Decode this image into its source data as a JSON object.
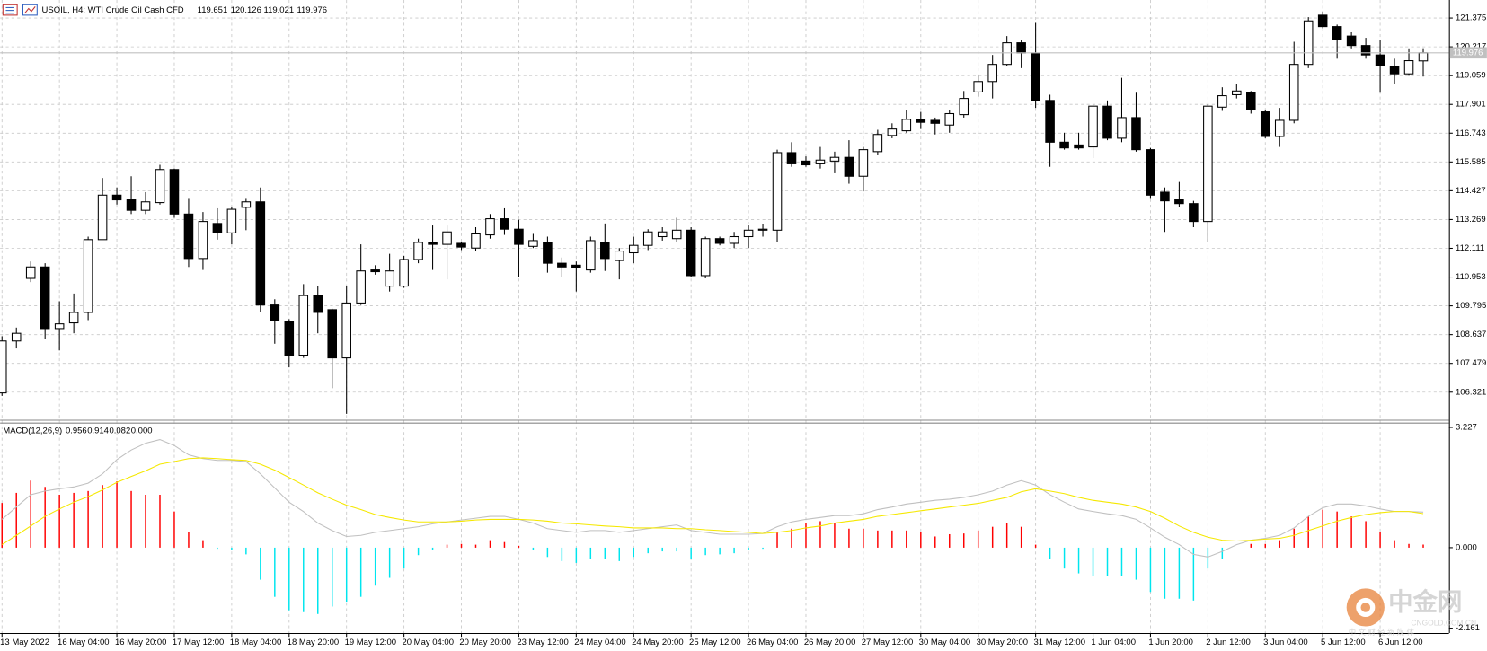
{
  "chart_data": [
    {
      "type": "candlestick",
      "title": "USOIL, H4: WTI Crude Oil Cash CFD",
      "categories": [
        "13 May 2022",
        null,
        null,
        null,
        "16 May 04:00",
        null,
        null,
        null,
        "16 May 20:00",
        null,
        null,
        null,
        "17 May 12:00",
        null,
        null,
        null,
        "18 May 04:00",
        null,
        null,
        null,
        "18 May 20:00",
        null,
        null,
        null,
        "19 May 12:00",
        null,
        null,
        null,
        "20 May 04:00",
        null,
        null,
        null,
        "20 May 20:00",
        null,
        null,
        null,
        "23 May 12:00",
        null,
        null,
        null,
        "24 May 04:00",
        null,
        null,
        null,
        "24 May 20:00",
        null,
        null,
        null,
        "25 May 12:00",
        null,
        null,
        null,
        "26 May 04:00",
        null,
        null,
        null,
        "26 May 20:00",
        null,
        null,
        null,
        "27 May 12:00",
        null,
        null,
        null,
        "30 May 04:00",
        null,
        null,
        null,
        "30 May 20:00",
        null,
        null,
        null,
        "31 May 12:00",
        null,
        null,
        null,
        "1 Jun 04:00",
        null,
        null,
        null,
        "1 Jun 20:00",
        null,
        null,
        null,
        "2 Jun 12:00",
        null,
        null,
        null,
        "3 Jun 04:00",
        null,
        null,
        null,
        "5 Jun 12:00",
        null,
        null,
        null,
        "6 Jun 12:00",
        null,
        null,
        null
      ],
      "open": [
        106.29,
        108.38,
        110.9,
        111.36,
        108.88,
        109.11,
        109.53,
        112.46,
        114.25,
        114.06,
        113.64,
        113.95,
        115.28,
        113.49,
        111.7,
        113.11,
        112.73,
        113.76,
        113.98,
        109.83,
        109.18,
        107.81,
        110.21,
        109.64,
        107.7,
        109.91,
        111.24,
        110.59,
        110.59,
        111.66,
        112.35,
        112.27,
        112.31,
        112.12,
        112.65,
        113.3,
        112.88,
        112.19,
        112.35,
        111.51,
        111.43,
        111.24,
        112.35,
        111.62,
        111.93,
        112.23,
        112.58,
        112.5,
        112.84,
        111.01,
        112.5,
        112.31,
        112.58,
        112.84,
        112.84,
        115.96,
        115.62,
        115.51,
        115.62,
        115.77,
        115.01,
        116.0,
        116.65,
        116.84,
        117.3,
        117.26,
        117.07,
        117.49,
        118.4,
        118.82,
        119.51,
        120.38,
        119.97,
        118.06,
        116.38,
        116.27,
        116.19,
        117.83,
        116.54,
        117.37,
        116.08,
        114.37,
        114.06,
        113.91,
        113.19,
        117.79,
        118.29,
        118.37,
        117.6,
        116.61,
        117.26,
        119.51,
        121.49,
        121.03,
        120.65,
        120.27,
        119.89,
        119.43,
        119.13,
        119.651
      ],
      "high": [
        108.57,
        108.92,
        111.58,
        111.51,
        109.98,
        110.29,
        112.58,
        114.94,
        114.56,
        115.01,
        114.37,
        115.47,
        115.32,
        114.1,
        113.57,
        113.72,
        113.79,
        114.1,
        114.56,
        110.06,
        109.26,
        110.67,
        110.59,
        109.68,
        110.59,
        112.27,
        111.43,
        111.89,
        111.81,
        112.5,
        113.03,
        113.03,
        112.35,
        112.96,
        113.49,
        113.72,
        113.26,
        112.69,
        112.58,
        111.74,
        111.58,
        112.58,
        113.11,
        112.12,
        112.58,
        112.88,
        112.96,
        113.34,
        112.96,
        112.58,
        112.58,
        112.77,
        113.03,
        113.07,
        116.08,
        116.38,
        115.81,
        116.19,
        116.0,
        116.46,
        116.19,
        116.88,
        117.14,
        117.68,
        117.6,
        117.37,
        117.68,
        118.44,
        119.05,
        119.89,
        120.65,
        120.5,
        121.18,
        118.29,
        116.76,
        116.76,
        117.91,
        118.06,
        118.97,
        118.37,
        116.15,
        114.56,
        114.78,
        114.02,
        117.91,
        118.59,
        118.74,
        118.44,
        117.68,
        117.76,
        120.42,
        121.41,
        121.64,
        121.11,
        120.8,
        120.58,
        120.5,
        119.74,
        120.12,
        120.126
      ],
      "low": [
        106.17,
        108.08,
        110.75,
        108.46,
        108.0,
        108.69,
        109.22,
        112.46,
        113.87,
        113.49,
        113.49,
        113.87,
        113.34,
        111.36,
        111.24,
        112.46,
        112.27,
        112.84,
        109.53,
        108.27,
        107.32,
        107.7,
        108.69,
        106.48,
        105.45,
        109.83,
        111.05,
        110.37,
        110.52,
        111.51,
        111.24,
        110.86,
        112.04,
        112.0,
        112.5,
        112.65,
        110.97,
        112.12,
        111.13,
        110.97,
        110.37,
        111.13,
        111.2,
        110.86,
        111.51,
        112.04,
        112.42,
        112.35,
        110.94,
        110.9,
        112.23,
        112.12,
        112.12,
        112.58,
        112.38,
        115.39,
        115.39,
        115.32,
        115.13,
        114.71,
        114.4,
        115.85,
        116.54,
        116.76,
        116.91,
        116.69,
        116.76,
        117.37,
        118.21,
        118.14,
        119.43,
        119.36,
        117.76,
        115.39,
        116.08,
        116.08,
        115.74,
        116.46,
        116.38,
        116.0,
        114.1,
        112.77,
        113.79,
        112.96,
        112.35,
        117.64,
        118.14,
        117.53,
        116.54,
        116.19,
        117.14,
        119.36,
        120.96,
        119.74,
        120.12,
        119.74,
        118.37,
        118.74,
        119.05,
        119.021
      ],
      "close": [
        108.38,
        108.69,
        111.36,
        108.88,
        109.07,
        109.53,
        112.46,
        114.25,
        114.06,
        113.64,
        113.98,
        115.28,
        113.49,
        111.7,
        113.19,
        112.73,
        113.68,
        113.98,
        109.83,
        109.22,
        107.81,
        110.21,
        109.53,
        107.7,
        109.91,
        111.2,
        111.17,
        111.2,
        111.66,
        112.35,
        112.27,
        112.77,
        112.16,
        112.69,
        113.3,
        112.88,
        112.27,
        112.42,
        111.51,
        111.36,
        111.32,
        112.42,
        111.7,
        112.0,
        112.23,
        112.77,
        112.77,
        112.84,
        111.01,
        112.5,
        112.31,
        112.58,
        112.84,
        112.88,
        115.96,
        115.51,
        115.47,
        115.66,
        115.77,
        115.01,
        116.08,
        116.69,
        116.91,
        117.3,
        117.18,
        117.14,
        117.53,
        118.14,
        118.82,
        119.51,
        120.38,
        119.97,
        118.06,
        116.38,
        116.15,
        116.15,
        117.83,
        116.54,
        117.37,
        116.08,
        114.25,
        114.02,
        113.91,
        113.19,
        117.83,
        118.25,
        118.44,
        117.68,
        116.61,
        117.26,
        119.51,
        121.26,
        121.03,
        120.5,
        120.27,
        119.89,
        119.47,
        119.13,
        119.66,
        119.976
      ],
      "up_color": "#ffffff",
      "down_color": "#000000",
      "price_line_color": "#c0c0c0",
      "ylim": [
        105.21,
        122.1
      ],
      "yticks": [
        121.375,
        120.217,
        119.059,
        117.901,
        116.743,
        115.585,
        114.427,
        113.269,
        112.111,
        110.953,
        109.795,
        108.637,
        107.479,
        106.321
      ],
      "grid": true
    },
    {
      "type": "macd",
      "title": "MACD(12,26,9)",
      "extra_value": {
        "value": 0,
        "label": "0.000"
      },
      "histogram": {
        "up_color": "#ff0000",
        "down_color": "#00e5ee",
        "values": [
          1.2,
          1.47,
          1.8,
          1.63,
          1.42,
          1.47,
          1.52,
          1.68,
          1.78,
          1.52,
          1.42,
          1.42,
          0.97,
          0.41,
          0.2,
          -0.03,
          -0.05,
          -0.18,
          -0.86,
          -1.32,
          -1.68,
          -1.73,
          -1.78,
          -1.58,
          -1.45,
          -1.32,
          -1.02,
          -0.81,
          -0.56,
          -0.2,
          -0.05,
          0.08,
          0.1,
          0.08,
          0.2,
          0.15,
          0.05,
          -0.05,
          -0.25,
          -0.36,
          -0.41,
          -0.3,
          -0.3,
          -0.36,
          -0.25,
          -0.15,
          -0.1,
          -0.1,
          -0.3,
          -0.2,
          -0.18,
          -0.15,
          -0.05,
          -0.03,
          0.41,
          0.51,
          0.66,
          0.71,
          0.66,
          0.51,
          0.51,
          0.46,
          0.46,
          0.46,
          0.41,
          0.3,
          0.36,
          0.38,
          0.46,
          0.56,
          0.66,
          0.56,
          0.08,
          -0.3,
          -0.56,
          -0.69,
          -0.76,
          -0.76,
          -0.76,
          -0.86,
          -1.19,
          -1.37,
          -1.37,
          -1.42,
          -0.56,
          -0.3,
          0,
          0.1,
          0.1,
          0.2,
          0.51,
          0.84,
          1.02,
          0.97,
          0.84,
          0.71,
          0.41,
          0.2,
          0.1,
          0.082
        ]
      },
      "series": [
        {
          "color": "#c0c0c0",
          "values": [
            0.76,
            1.09,
            1.42,
            1.52,
            1.58,
            1.63,
            1.73,
            1.98,
            2.36,
            2.62,
            2.8,
            2.9,
            2.74,
            2.49,
            2.39,
            2.34,
            2.34,
            2.31,
            1.98,
            1.6,
            1.22,
            0.97,
            0.66,
            0.46,
            0.3,
            0.33,
            0.41,
            0.46,
            0.51,
            0.56,
            0.64,
            0.69,
            0.74,
            0.79,
            0.84,
            0.84,
            0.76,
            0.66,
            0.51,
            0.46,
            0.41,
            0.46,
            0.46,
            0.41,
            0.46,
            0.51,
            0.56,
            0.61,
            0.46,
            0.41,
            0.36,
            0.36,
            0.36,
            0.38,
            0.56,
            0.69,
            0.76,
            0.81,
            0.86,
            0.86,
            0.91,
            1.02,
            1.09,
            1.17,
            1.22,
            1.27,
            1.3,
            1.35,
            1.42,
            1.52,
            1.68,
            1.8,
            1.68,
            1.42,
            1.22,
            1.04,
            0.97,
            0.91,
            0.86,
            0.76,
            0.53,
            0.28,
            0.08,
            -0.18,
            -0.25,
            -0.1,
            0.08,
            0.2,
            0.25,
            0.33,
            0.53,
            0.84,
            1.07,
            1.17,
            1.17,
            1.12,
            1.04,
            0.97,
            0.97,
            0.956
          ]
        },
        {
          "color": "#f5e800",
          "values": [
            0.08,
            0.33,
            0.58,
            0.84,
            1.04,
            1.22,
            1.37,
            1.55,
            1.75,
            1.91,
            2.06,
            2.24,
            2.31,
            2.39,
            2.41,
            2.39,
            2.36,
            2.34,
            2.24,
            2.08,
            1.88,
            1.68,
            1.47,
            1.3,
            1.14,
            1.02,
            0.89,
            0.81,
            0.74,
            0.69,
            0.69,
            0.69,
            0.71,
            0.74,
            0.76,
            0.76,
            0.76,
            0.74,
            0.71,
            0.66,
            0.64,
            0.61,
            0.58,
            0.56,
            0.53,
            0.53,
            0.53,
            0.51,
            0.51,
            0.48,
            0.46,
            0.43,
            0.41,
            0.38,
            0.41,
            0.46,
            0.53,
            0.58,
            0.66,
            0.71,
            0.76,
            0.84,
            0.89,
            0.94,
            0.99,
            1.04,
            1.09,
            1.14,
            1.19,
            1.27,
            1.35,
            1.5,
            1.58,
            1.52,
            1.45,
            1.35,
            1.27,
            1.22,
            1.17,
            1.09,
            0.97,
            0.79,
            0.58,
            0.41,
            0.28,
            0.2,
            0.18,
            0.2,
            0.23,
            0.25,
            0.33,
            0.46,
            0.58,
            0.71,
            0.81,
            0.89,
            0.94,
            0.97,
            0.97,
            0.914
          ]
        }
      ],
      "ylim": [
        -2.29,
        3.33
      ],
      "yticks": [
        3.227,
        {
          "value": 0,
          "label": "0.000"
        },
        -2.161
      ]
    }
  ],
  "watermark": {
    "name": "中金网",
    "domain": "CNGOLD.COM.CN",
    "tagline": "中 文 财 经 新 媒 体"
  }
}
